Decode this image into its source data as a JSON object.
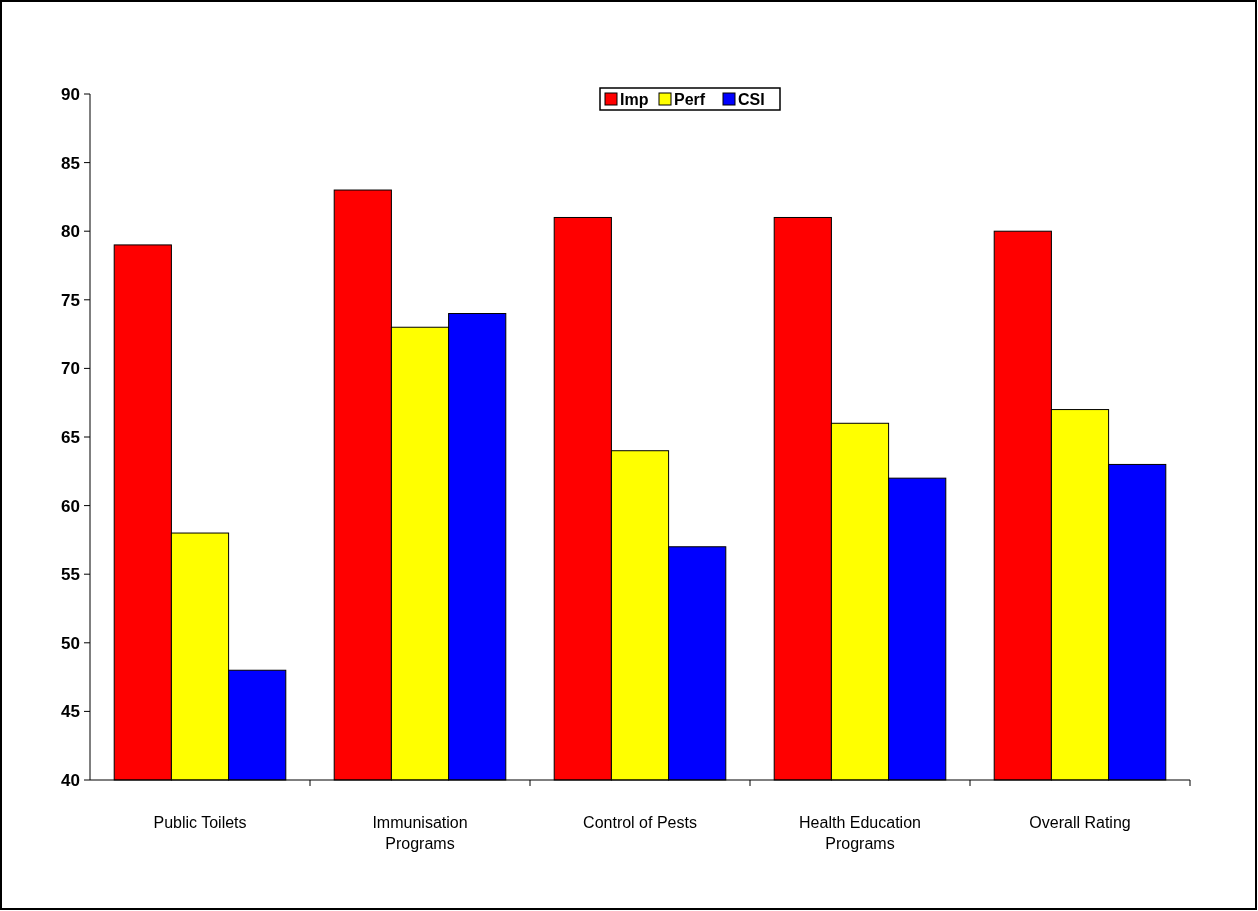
{
  "chart_data": {
    "type": "bar",
    "categories": [
      "Public Toilets",
      "Immunisation Programs",
      "Control of Pests",
      "Health Education Programs",
      "Overall Rating"
    ],
    "series": [
      {
        "name": "Imp",
        "color": "#ff0000",
        "values": [
          79,
          83,
          81,
          81,
          80
        ]
      },
      {
        "name": "Perf",
        "color": "#ffff00",
        "values": [
          58,
          73,
          64,
          66,
          67
        ]
      },
      {
        "name": "CSI",
        "color": "#0000ff",
        "values": [
          48,
          74,
          57,
          62,
          63
        ]
      }
    ],
    "ylim": [
      40,
      90
    ],
    "yticks": [
      40,
      45,
      50,
      55,
      60,
      65,
      70,
      75,
      80,
      85,
      90
    ],
    "grid": false,
    "legend": "top"
  }
}
